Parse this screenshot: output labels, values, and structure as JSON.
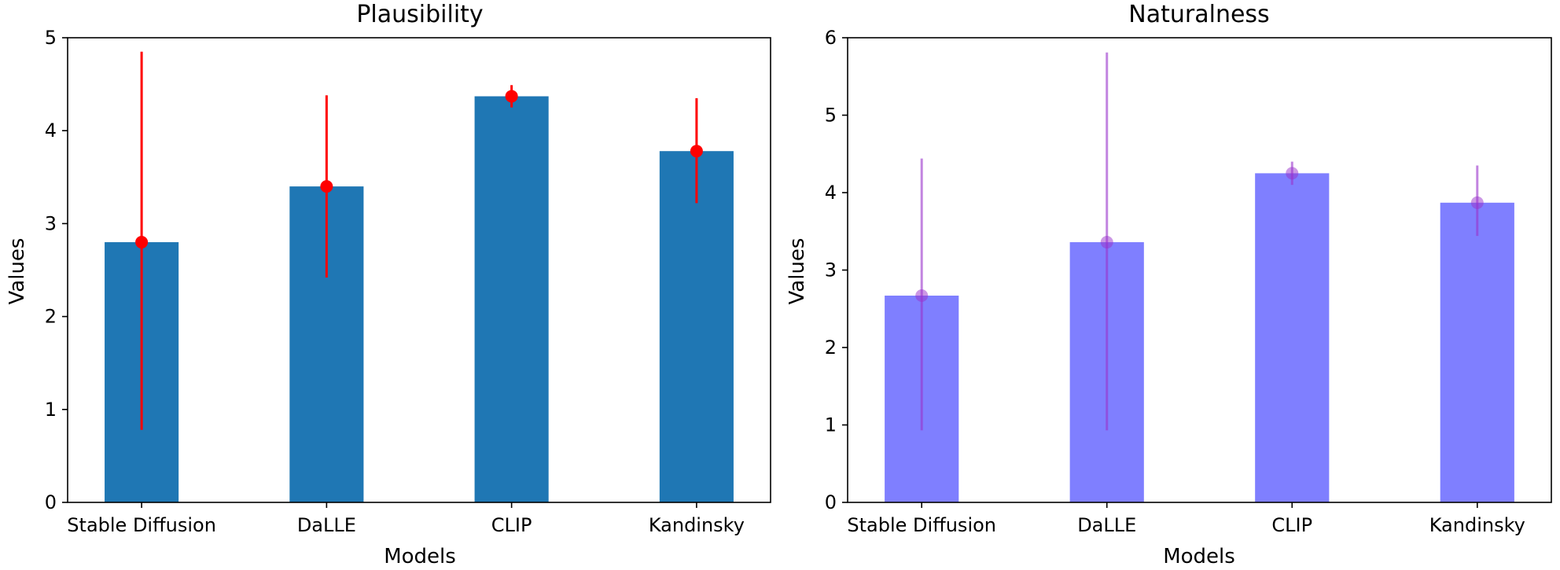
{
  "chart_data": [
    {
      "type": "bar",
      "title": "Plausibility",
      "xlabel": "Models",
      "ylabel": "Values",
      "categories": [
        "Stable Diffusion",
        "DaLLE",
        "CLIP",
        "Kandinsky"
      ],
      "values": [
        2.8,
        3.4,
        4.37,
        3.78
      ],
      "error_low": [
        0.78,
        2.42,
        4.25,
        3.22
      ],
      "error_high": [
        4.85,
        4.38,
        4.49,
        4.35
      ],
      "ylim": [
        0,
        5
      ],
      "yticks": [
        "0",
        "1",
        "2",
        "3",
        "4",
        "5"
      ],
      "bar_color": "#1f77b4",
      "error_color": "#ff0000",
      "grid": false
    },
    {
      "type": "bar",
      "title": "Naturalness",
      "xlabel": "Models",
      "ylabel": "Values",
      "categories": [
        "Stable Diffusion",
        "DaLLE",
        "CLIP",
        "Kandinsky"
      ],
      "values": [
        2.67,
        3.36,
        4.25,
        3.87
      ],
      "error_low": [
        0.93,
        0.93,
        4.1,
        3.44
      ],
      "error_high": [
        4.44,
        5.81,
        4.4,
        4.35
      ],
      "ylim": [
        0,
        6
      ],
      "yticks": [
        "0",
        "1",
        "2",
        "3",
        "4",
        "5",
        "6"
      ],
      "bar_color": "#7f7fff",
      "error_color": "#9932cc",
      "grid": false
    }
  ]
}
